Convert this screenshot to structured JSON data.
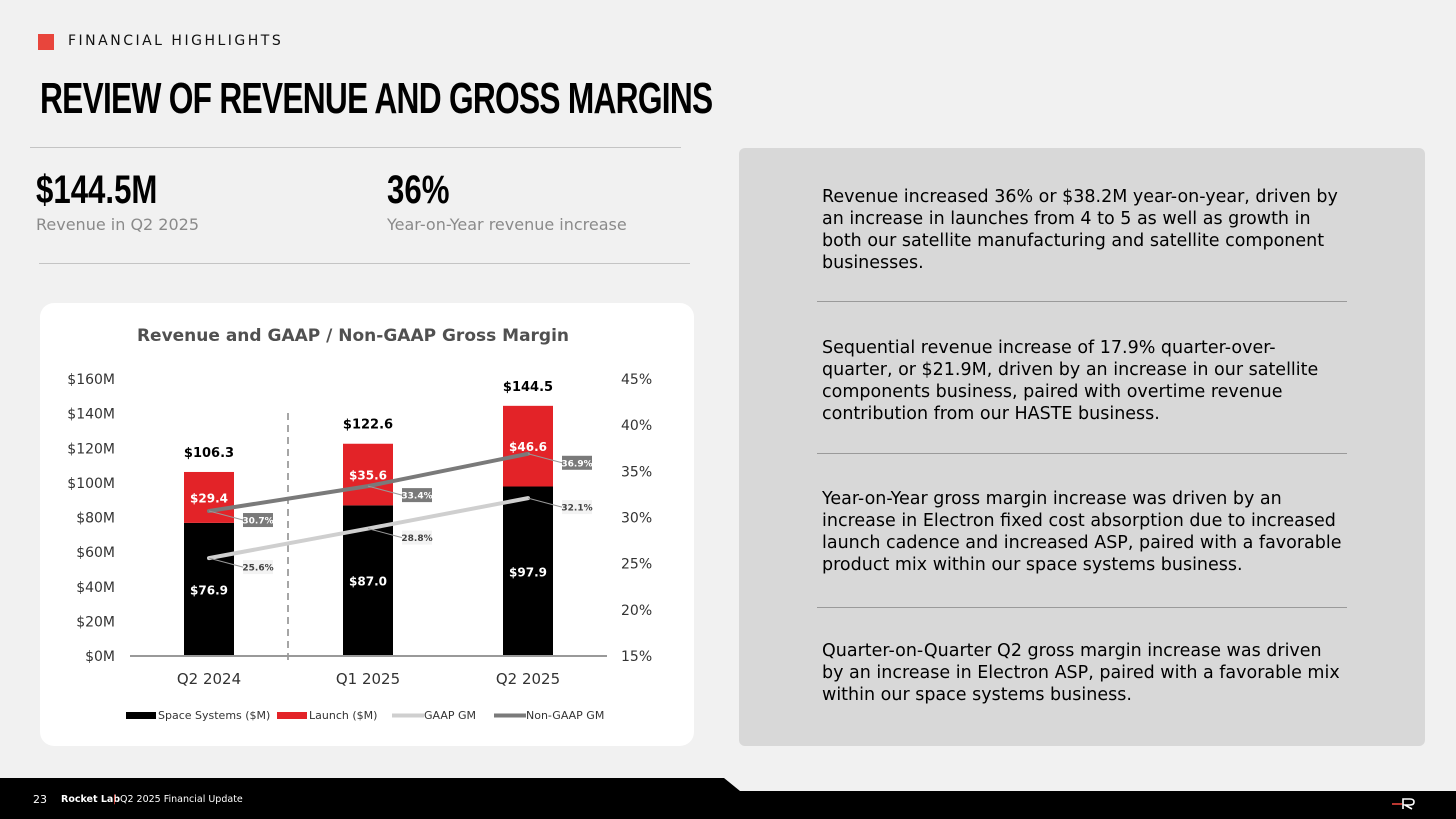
{
  "header": {
    "section_label": "FINANCIAL HIGHLIGHTS",
    "title": "REVIEW OF REVENUE AND GROSS MARGINS"
  },
  "kpis": [
    {
      "value": "$144.5M",
      "label": "Revenue in Q2 2025"
    },
    {
      "value": "36%",
      "label": "Year-on-Year revenue increase"
    }
  ],
  "panel": {
    "paragraphs": [
      "Revenue increased 36% or $38.2M year-on-year, driven by an increase in launches from 4 to 5 as well as growth in both our satellite manufacturing and satellite component businesses.",
      "Sequential revenue increase of 17.9% quarter-over-quarter, or $21.9M, driven by an increase in our satellite components business, paired with overtime revenue contribution from our HASTE business.",
      "Year-on-Year gross margin increase was driven by an increase in Electron fixed cost absorption due to increased launch cadence and increased ASP, paired with a favorable product mix within our space systems business.",
      "Quarter-on-Quarter Q2 gross margin increase was driven by an increase in Electron ASP, paired with a favorable mix within our space systems business."
    ]
  },
  "footer": {
    "page_number": "23",
    "company": "Rocket Lab",
    "divider": "|",
    "doc_title": "Q2 2025 Financial Update"
  },
  "colors": {
    "accent": "#e8453c",
    "space_systems": "#000000",
    "launch": "#e32328",
    "gaap": "#cfcfcf",
    "non_gaap": "#7a7a7a"
  },
  "chart_data": {
    "type": "bar",
    "title": "Revenue and GAAP / Non-GAAP Gross Margin",
    "categories": [
      "Q2 2024",
      "Q1 2025",
      "Q2 2025"
    ],
    "stacked": true,
    "series": [
      {
        "name": "Space Systems ($M)",
        "type": "bar",
        "axis": "left",
        "values": [
          76.9,
          87.0,
          97.9
        ],
        "labels": [
          "$76.9",
          "$87.0",
          "$97.9"
        ]
      },
      {
        "name": "Launch ($M)",
        "type": "bar",
        "axis": "left",
        "values": [
          29.4,
          35.6,
          46.6
        ],
        "labels": [
          "$29.4",
          "$35.6",
          "$46.6"
        ]
      },
      {
        "name": "GAAP GM",
        "type": "line",
        "axis": "right",
        "values": [
          25.6,
          28.8,
          32.1
        ],
        "labels": [
          "25.6%",
          "28.8%",
          "32.1%"
        ]
      },
      {
        "name": "Non-GAAP GM",
        "type": "line",
        "axis": "right",
        "values": [
          30.7,
          33.4,
          36.9
        ],
        "labels": [
          "30.7%",
          "33.4%",
          "36.9%"
        ]
      }
    ],
    "totals": [
      106.3,
      122.6,
      144.5
    ],
    "total_labels": [
      "$106.3",
      "$122.6",
      "$144.5"
    ],
    "y_left": {
      "ticks": [
        "$0M",
        "$20M",
        "$40M",
        "$60M",
        "$80M",
        "$100M",
        "$120M",
        "$140M",
        "$160M"
      ],
      "values": [
        0,
        20,
        40,
        60,
        80,
        100,
        120,
        140,
        160
      ],
      "range": [
        0,
        160
      ]
    },
    "y_right": {
      "ticks": [
        "15%",
        "20%",
        "25%",
        "30%",
        "35%",
        "40%",
        "45%"
      ],
      "values": [
        15,
        20,
        25,
        30,
        35,
        40,
        45
      ],
      "range": [
        15,
        45
      ]
    },
    "legend_position": "bottom",
    "grid": false
  }
}
